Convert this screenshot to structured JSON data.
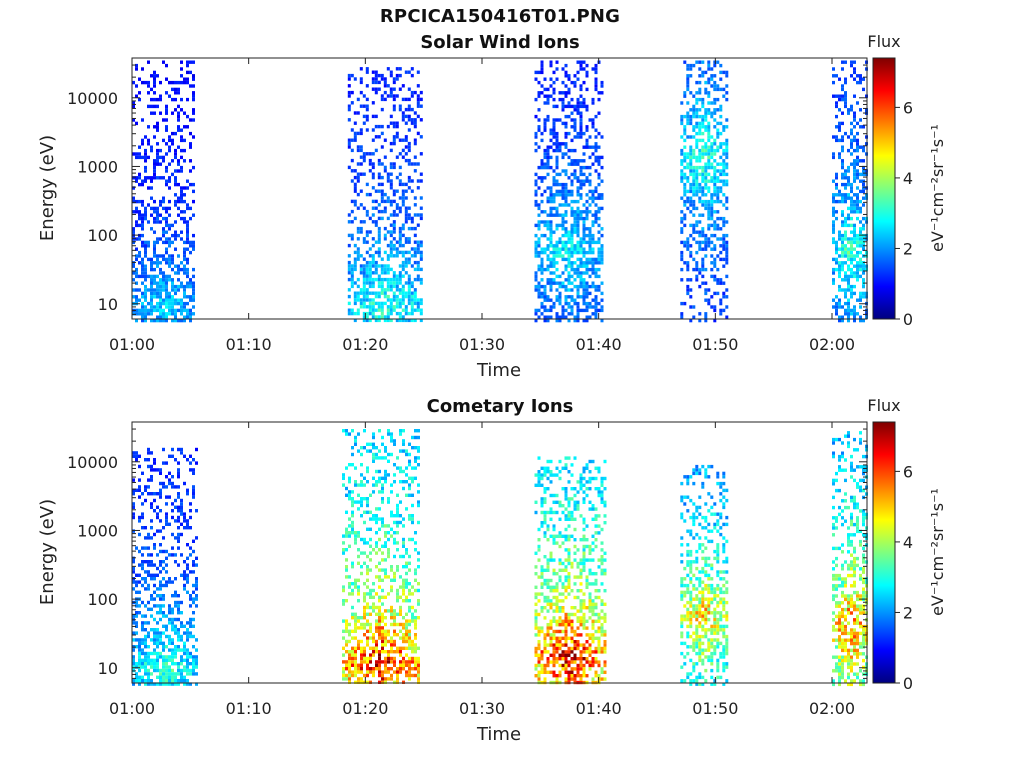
{
  "figure_title": "RPCICA150416T01.PNG",
  "colormap": [
    "#00007f",
    "#0000ff",
    "#007fff",
    "#00ffff",
    "#7fff7f",
    "#ffff00",
    "#ff7f00",
    "#ff0000",
    "#7f0000"
  ],
  "chart_data": [
    {
      "type": "heatmap",
      "title": "Solar Wind Ions",
      "xlabel": "Time",
      "ylabel": "Energy (eV)",
      "x_scale": "time",
      "xlim": [
        "01:00",
        "02:03"
      ],
      "x_ticks": [
        "01:00",
        "01:10",
        "01:20",
        "01:30",
        "01:40",
        "01:50",
        "02:00"
      ],
      "y_scale": "log",
      "ylim": [
        6,
        38000
      ],
      "y_ticks": [
        {
          "value": 10,
          "label": "10"
        },
        {
          "value": 100,
          "label": "100"
        },
        {
          "value": 1000,
          "label": "1000"
        },
        {
          "value": 10000,
          "label": "10000"
        }
      ],
      "colorbar": {
        "title": "Flux",
        "label": "eV⁻¹cm⁻²sr⁻¹s⁻¹",
        "range": [
          0,
          7.4
        ],
        "ticks": [
          0,
          2,
          4,
          6
        ]
      },
      "bursts": [
        {
          "t_start": "01:00",
          "t_end": "01:05.2",
          "e_min": 6,
          "e_max": 35000,
          "peak_flux": 2.6,
          "peak_energy": 10
        },
        {
          "t_start": "01:18.5",
          "t_end": "01:24.8",
          "e_min": 6,
          "e_max": 28000,
          "peak_flux": 3.2,
          "peak_energy": 10
        },
        {
          "t_start": "01:34.5",
          "t_end": "01:40.2",
          "e_min": 6,
          "e_max": 35000,
          "peak_flux": 2.9,
          "peak_energy": 60
        },
        {
          "t_start": "01:47",
          "t_end": "01:51",
          "e_min": 6,
          "e_max": 35000,
          "peak_flux": 3.3,
          "peak_energy": 1500
        },
        {
          "t_start": "02:00",
          "t_end": "02:03",
          "e_min": 6,
          "e_max": 35000,
          "peak_flux": 3.3,
          "peak_energy": 60
        }
      ]
    },
    {
      "type": "heatmap",
      "title": "Cometary Ions",
      "xlabel": "Time",
      "ylabel": "Energy (eV)",
      "x_scale": "time",
      "xlim": [
        "01:00",
        "02:03"
      ],
      "x_ticks": [
        "01:00",
        "01:10",
        "01:20",
        "01:30",
        "01:40",
        "01:50",
        "02:00"
      ],
      "y_scale": "log",
      "ylim": [
        6,
        38000
      ],
      "y_ticks": [
        {
          "value": 10,
          "label": "10"
        },
        {
          "value": 100,
          "label": "100"
        },
        {
          "value": 1000,
          "label": "1000"
        },
        {
          "value": 10000,
          "label": "10000"
        }
      ],
      "colorbar": {
        "title": "Flux",
        "label": "eV⁻¹cm⁻²sr⁻¹s⁻¹",
        "range": [
          0,
          7.4
        ],
        "ticks": [
          0,
          2,
          4,
          6
        ]
      },
      "bursts": [
        {
          "t_start": "01:00",
          "t_end": "01:05.5",
          "e_min": 6,
          "e_max": 16000,
          "peak_flux": 3.3,
          "peak_energy": 10
        },
        {
          "t_start": "01:18",
          "t_end": "01:24.5",
          "e_min": 6,
          "e_max": 30000,
          "peak_flux": 6.8,
          "peak_energy": 12
        },
        {
          "t_start": "01:34.5",
          "t_end": "01:40.5",
          "e_min": 6,
          "e_max": 12000,
          "peak_flux": 7.0,
          "peak_energy": 15
        },
        {
          "t_start": "01:47",
          "t_end": "01:51",
          "e_min": 6,
          "e_max": 9000,
          "peak_flux": 5.2,
          "peak_energy": 60
        },
        {
          "t_start": "02:00",
          "t_end": "02:03",
          "e_min": 6,
          "e_max": 28000,
          "peak_flux": 6.0,
          "peak_energy": 40
        }
      ]
    }
  ]
}
